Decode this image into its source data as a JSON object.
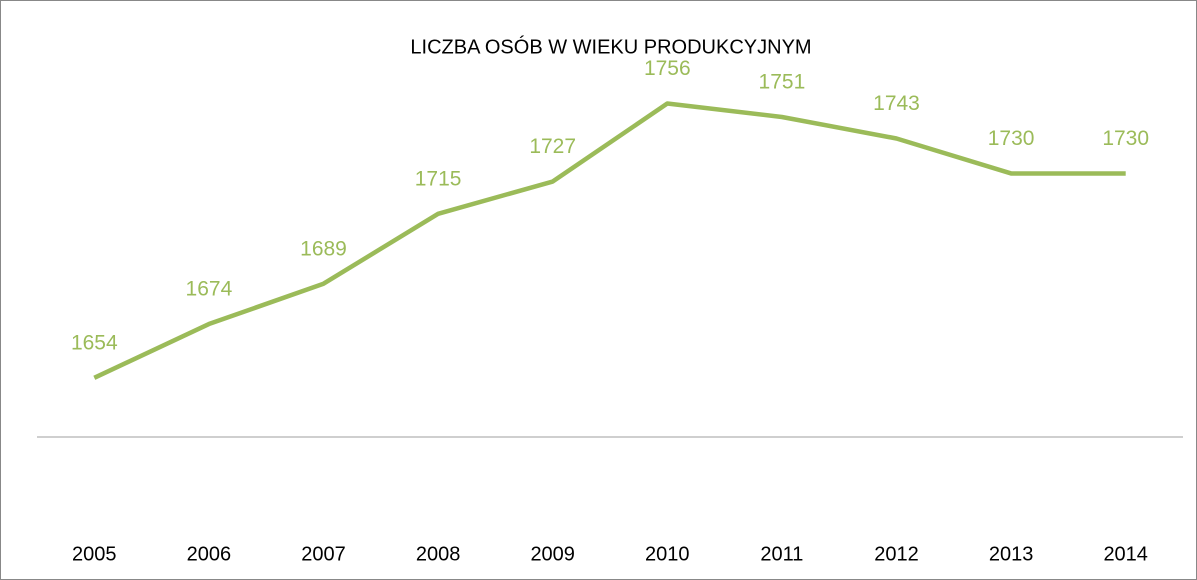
{
  "chart_data": {
    "type": "line",
    "title": "LICZBA OSÓB W WIEKU PRODUKCYJNYM",
    "categories": [
      "2005",
      "2006",
      "2007",
      "2008",
      "2009",
      "2010",
      "2011",
      "2012",
      "2013",
      "2014"
    ],
    "series": [
      {
        "name": "Liczba osób",
        "color": "#9bbb59",
        "values": [
          1654,
          1674,
          1689,
          1715,
          1727,
          1756,
          1751,
          1743,
          1730,
          1730
        ]
      }
    ],
    "ylim": [
      1632,
      1780
    ]
  }
}
